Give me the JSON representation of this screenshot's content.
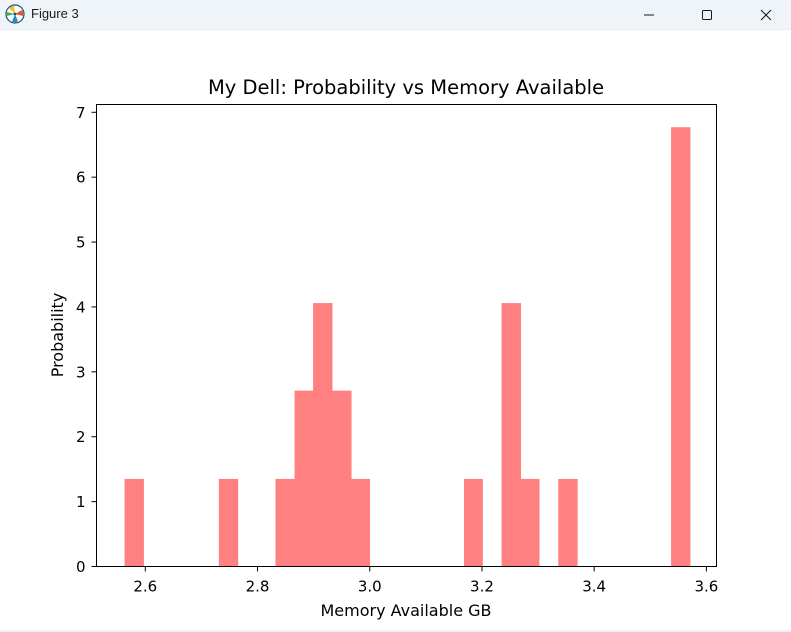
{
  "window": {
    "title": "Figure 3",
    "icon": "matplotlib-logo-icon",
    "controls": [
      "minimize-icon",
      "maximize-icon",
      "close-icon"
    ]
  },
  "chart_data": {
    "type": "bar",
    "title": "My Dell: Probability vs Memory Available",
    "xlabel": "Memory Available GB",
    "ylabel": "Probability",
    "xlim": [
      2.513,
      3.618
    ],
    "ylim": [
      0,
      7.12
    ],
    "xticks": [
      2.6,
      2.8,
      3.0,
      3.2,
      3.4,
      3.6
    ],
    "xtick_labels": [
      "2.6",
      "2.8",
      "3.0",
      "3.2",
      "3.4",
      "3.6"
    ],
    "yticks": [
      0,
      1,
      2,
      3,
      4,
      5,
      6,
      7
    ],
    "ytick_labels": [
      "0",
      "1",
      "2",
      "3",
      "4",
      "5",
      "6",
      "7"
    ],
    "grid": false,
    "color": "#ff8080",
    "bins": [
      {
        "x0": 2.563,
        "x1": 2.597,
        "value": 1.35
      },
      {
        "x0": 2.731,
        "x1": 2.765,
        "value": 1.35
      },
      {
        "x0": 2.832,
        "x1": 2.866,
        "value": 1.35
      },
      {
        "x0": 2.866,
        "x1": 2.899,
        "value": 2.71
      },
      {
        "x0": 2.899,
        "x1": 2.933,
        "value": 4.06
      },
      {
        "x0": 2.933,
        "x1": 2.967,
        "value": 2.71
      },
      {
        "x0": 2.967,
        "x1": 3.0,
        "value": 1.35
      },
      {
        "x0": 3.168,
        "x1": 3.201,
        "value": 1.35
      },
      {
        "x0": 3.235,
        "x1": 3.269,
        "value": 4.06
      },
      {
        "x0": 3.269,
        "x1": 3.302,
        "value": 1.35
      },
      {
        "x0": 3.336,
        "x1": 3.37,
        "value": 1.35
      },
      {
        "x0": 3.537,
        "x1": 3.571,
        "value": 6.77
      }
    ]
  }
}
